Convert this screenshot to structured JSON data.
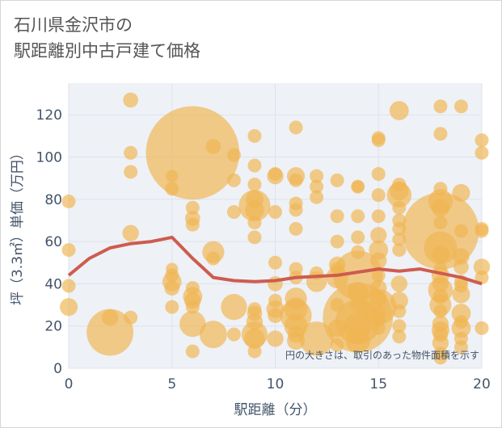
{
  "title": {
    "line1": "石川県金沢市の",
    "line2": "駅距離別中古戸建て価格"
  },
  "note": "円の大きさは、取引のあった物件面積を示す",
  "colors": {
    "bubble": "#f0b552",
    "line": "#cd5c4f",
    "grid": "#dde3ec",
    "plot_bg": "#eef1f6",
    "axis_text": "#44546a"
  },
  "chart_data": {
    "type": "scatter",
    "xlabel": "駅距離（分）",
    "ylabel": "坪（3.3㎡）単価（万円）",
    "xlim": [
      0,
      20
    ],
    "ylim": [
      0,
      135
    ],
    "x_ticks": [
      0,
      5,
      10,
      15,
      20
    ],
    "y_ticks": [
      0,
      20,
      40,
      60,
      80,
      100,
      120
    ],
    "grid": true,
    "points": [
      {
        "x": 0,
        "y": 79,
        "s": 1
      },
      {
        "x": 0,
        "y": 56,
        "s": 1
      },
      {
        "x": 0,
        "y": 39,
        "s": 1
      },
      {
        "x": 0,
        "y": 29,
        "s": 1.3
      },
      {
        "x": 2,
        "y": 24,
        "s": 1.2
      },
      {
        "x": 2,
        "y": 17,
        "s": 3.4
      },
      {
        "x": 3,
        "y": 127,
        "s": 1.1
      },
      {
        "x": 3,
        "y": 102,
        "s": 1
      },
      {
        "x": 3,
        "y": 93,
        "s": 1
      },
      {
        "x": 3,
        "y": 64,
        "s": 1.2
      },
      {
        "x": 3,
        "y": 24,
        "s": 1
      },
      {
        "x": 5,
        "y": 91,
        "s": 0.9
      },
      {
        "x": 5,
        "y": 85,
        "s": 1
      },
      {
        "x": 5,
        "y": 47,
        "s": 0.9
      },
      {
        "x": 5,
        "y": 44,
        "s": 1
      },
      {
        "x": 5,
        "y": 41,
        "s": 1.4
      },
      {
        "x": 5,
        "y": 38,
        "s": 1.1
      },
      {
        "x": 5,
        "y": 29,
        "s": 1
      },
      {
        "x": 6,
        "y": 102,
        "s": 6.8
      },
      {
        "x": 6,
        "y": 76,
        "s": 1
      },
      {
        "x": 6,
        "y": 71,
        "s": 1.1
      },
      {
        "x": 6,
        "y": 68,
        "s": 1
      },
      {
        "x": 6,
        "y": 38,
        "s": 1
      },
      {
        "x": 6,
        "y": 34,
        "s": 1.4
      },
      {
        "x": 6,
        "y": 32,
        "s": 1.2
      },
      {
        "x": 6,
        "y": 29,
        "s": 1
      },
      {
        "x": 6,
        "y": 21,
        "s": 1.9
      },
      {
        "x": 6,
        "y": 8,
        "s": 1
      },
      {
        "x": 7,
        "y": 105,
        "s": 1.1
      },
      {
        "x": 7,
        "y": 55,
        "s": 1.6
      },
      {
        "x": 7,
        "y": 52,
        "s": 1
      },
      {
        "x": 7,
        "y": 16,
        "s": 2
      },
      {
        "x": 8,
        "y": 101,
        "s": 1
      },
      {
        "x": 8,
        "y": 89,
        "s": 1
      },
      {
        "x": 8,
        "y": 74,
        "s": 1
      },
      {
        "x": 8,
        "y": 29,
        "s": 1.9
      },
      {
        "x": 8,
        "y": 16,
        "s": 1
      },
      {
        "x": 9,
        "y": 110,
        "s": 1
      },
      {
        "x": 9,
        "y": 96,
        "s": 1
      },
      {
        "x": 9,
        "y": 87,
        "s": 1
      },
      {
        "x": 9,
        "y": 80,
        "s": 1.3
      },
      {
        "x": 9,
        "y": 77,
        "s": 2.3
      },
      {
        "x": 9,
        "y": 75,
        "s": 1.4
      },
      {
        "x": 9,
        "y": 69,
        "s": 1
      },
      {
        "x": 9,
        "y": 62,
        "s": 1
      },
      {
        "x": 9,
        "y": 28,
        "s": 1
      },
      {
        "x": 9,
        "y": 26,
        "s": 1.1
      },
      {
        "x": 9,
        "y": 22,
        "s": 1.2
      },
      {
        "x": 9,
        "y": 16,
        "s": 1.9
      },
      {
        "x": 9,
        "y": 14,
        "s": 1.5
      },
      {
        "x": 9,
        "y": 8,
        "s": 1
      },
      {
        "x": 10,
        "y": 92,
        "s": 1
      },
      {
        "x": 10,
        "y": 91,
        "s": 1.2
      },
      {
        "x": 10,
        "y": 74,
        "s": 1
      },
      {
        "x": 10,
        "y": 50,
        "s": 1
      },
      {
        "x": 10,
        "y": 40,
        "s": 1.1
      },
      {
        "x": 10,
        "y": 32,
        "s": 1
      },
      {
        "x": 10,
        "y": 28,
        "s": 1.3
      },
      {
        "x": 10,
        "y": 25,
        "s": 1.1
      },
      {
        "x": 10,
        "y": 14,
        "s": 1.2
      },
      {
        "x": 11,
        "y": 114,
        "s": 1
      },
      {
        "x": 11,
        "y": 91,
        "s": 1.3
      },
      {
        "x": 11,
        "y": 89,
        "s": 1
      },
      {
        "x": 11,
        "y": 78,
        "s": 1
      },
      {
        "x": 11,
        "y": 75,
        "s": 1
      },
      {
        "x": 11,
        "y": 66,
        "s": 1
      },
      {
        "x": 11,
        "y": 47,
        "s": 1
      },
      {
        "x": 11,
        "y": 43,
        "s": 1
      },
      {
        "x": 11,
        "y": 33,
        "s": 1.6
      },
      {
        "x": 11,
        "y": 28,
        "s": 1.7
      },
      {
        "x": 11,
        "y": 25,
        "s": 2.3
      },
      {
        "x": 11,
        "y": 20,
        "s": 1.7
      },
      {
        "x": 11,
        "y": 16,
        "s": 1.2
      },
      {
        "x": 11,
        "y": 13,
        "s": 1.3
      },
      {
        "x": 12,
        "y": 91,
        "s": 1
      },
      {
        "x": 12,
        "y": 86,
        "s": 1
      },
      {
        "x": 12,
        "y": 81,
        "s": 1
      },
      {
        "x": 12,
        "y": 45,
        "s": 1
      },
      {
        "x": 12,
        "y": 41,
        "s": 1.5
      },
      {
        "x": 12,
        "y": 14,
        "s": 2.5
      },
      {
        "x": 13,
        "y": 89,
        "s": 1
      },
      {
        "x": 13,
        "y": 72,
        "s": 1
      },
      {
        "x": 13,
        "y": 60,
        "s": 1
      },
      {
        "x": 13,
        "y": 49,
        "s": 1.2
      },
      {
        "x": 13,
        "y": 47,
        "s": 1
      },
      {
        "x": 13,
        "y": 43,
        "s": 1.6
      },
      {
        "x": 13,
        "y": 30,
        "s": 1
      },
      {
        "x": 13,
        "y": 19,
        "s": 1.3
      },
      {
        "x": 13,
        "y": 11,
        "s": 1
      },
      {
        "x": 14,
        "y": 86,
        "s": 1
      },
      {
        "x": 14,
        "y": 86,
        "s": 0.9
      },
      {
        "x": 14,
        "y": 72,
        "s": 1
      },
      {
        "x": 14,
        "y": 62,
        "s": 1
      },
      {
        "x": 14,
        "y": 55,
        "s": 1
      },
      {
        "x": 14,
        "y": 44,
        "s": 3.6
      },
      {
        "x": 14,
        "y": 36,
        "s": 1.5
      },
      {
        "x": 14,
        "y": 30,
        "s": 1.1
      },
      {
        "x": 14,
        "y": 24,
        "s": 5.1
      },
      {
        "x": 14,
        "y": 22,
        "s": 3.3
      },
      {
        "x": 14,
        "y": 20,
        "s": 2
      },
      {
        "x": 14,
        "y": 16,
        "s": 1.2
      },
      {
        "x": 14,
        "y": 13,
        "s": 1.8
      },
      {
        "x": 15,
        "y": 109,
        "s": 1
      },
      {
        "x": 15,
        "y": 108,
        "s": 1
      },
      {
        "x": 15,
        "y": 92,
        "s": 1
      },
      {
        "x": 15,
        "y": 82,
        "s": 1
      },
      {
        "x": 15,
        "y": 72,
        "s": 1
      },
      {
        "x": 15,
        "y": 63,
        "s": 1.2
      },
      {
        "x": 15,
        "y": 56,
        "s": 1.4
      },
      {
        "x": 15,
        "y": 51,
        "s": 1.2
      },
      {
        "x": 15,
        "y": 44,
        "s": 1
      },
      {
        "x": 15,
        "y": 38,
        "s": 1.2
      },
      {
        "x": 15,
        "y": 33,
        "s": 1.2
      },
      {
        "x": 15,
        "y": 29,
        "s": 2.6
      },
      {
        "x": 15,
        "y": 26,
        "s": 1.1
      },
      {
        "x": 15,
        "y": 23,
        "s": 1
      },
      {
        "x": 15,
        "y": 19,
        "s": 1
      },
      {
        "x": 16,
        "y": 122,
        "s": 1.4
      },
      {
        "x": 16,
        "y": 87,
        "s": 1
      },
      {
        "x": 16,
        "y": 84,
        "s": 1.4
      },
      {
        "x": 16,
        "y": 82,
        "s": 1.8
      },
      {
        "x": 16,
        "y": 76,
        "s": 1
      },
      {
        "x": 16,
        "y": 70,
        "s": 1
      },
      {
        "x": 16,
        "y": 66,
        "s": 1
      },
      {
        "x": 16,
        "y": 61,
        "s": 1
      },
      {
        "x": 16,
        "y": 56,
        "s": 1
      },
      {
        "x": 16,
        "y": 40,
        "s": 1.2
      },
      {
        "x": 16,
        "y": 32,
        "s": 1.3
      },
      {
        "x": 16,
        "y": 27,
        "s": 1
      },
      {
        "x": 16,
        "y": 20,
        "s": 1
      },
      {
        "x": 16,
        "y": 15,
        "s": 1
      },
      {
        "x": 18,
        "y": 124,
        "s": 1
      },
      {
        "x": 18,
        "y": 111,
        "s": 1
      },
      {
        "x": 18,
        "y": 85,
        "s": 1
      },
      {
        "x": 18,
        "y": 79,
        "s": 1.8
      },
      {
        "x": 18,
        "y": 76,
        "s": 1.3
      },
      {
        "x": 18,
        "y": 69,
        "s": 1
      },
      {
        "x": 18,
        "y": 65,
        "s": 5.6
      },
      {
        "x": 18,
        "y": 57,
        "s": 2.4
      },
      {
        "x": 18,
        "y": 54,
        "s": 1.3
      },
      {
        "x": 18,
        "y": 47,
        "s": 1
      },
      {
        "x": 18,
        "y": 44,
        "s": 1.3
      },
      {
        "x": 18,
        "y": 40,
        "s": 1.2
      },
      {
        "x": 18,
        "y": 37,
        "s": 1.8
      },
      {
        "x": 18,
        "y": 34,
        "s": 1.1
      },
      {
        "x": 18,
        "y": 30,
        "s": 1.6
      },
      {
        "x": 18,
        "y": 27,
        "s": 1
      },
      {
        "x": 18,
        "y": 21,
        "s": 1.2
      },
      {
        "x": 18,
        "y": 18,
        "s": 1.3
      },
      {
        "x": 18,
        "y": 16,
        "s": 1.1
      },
      {
        "x": 18,
        "y": 12,
        "s": 1.2
      },
      {
        "x": 18,
        "y": 7,
        "s": 1
      },
      {
        "x": 18,
        "y": 5,
        "s": 1
      },
      {
        "x": 19,
        "y": 124,
        "s": 1
      },
      {
        "x": 19,
        "y": 83,
        "s": 1.3
      },
      {
        "x": 19,
        "y": 65,
        "s": 1
      },
      {
        "x": 19,
        "y": 53,
        "s": 1.2
      },
      {
        "x": 19,
        "y": 48,
        "s": 1.1
      },
      {
        "x": 19,
        "y": 41,
        "s": 1
      },
      {
        "x": 19,
        "y": 39,
        "s": 1
      },
      {
        "x": 19,
        "y": 35,
        "s": 1.3
      },
      {
        "x": 19,
        "y": 26,
        "s": 1.4
      },
      {
        "x": 19,
        "y": 22,
        "s": 1
      },
      {
        "x": 19,
        "y": 19,
        "s": 1.4
      },
      {
        "x": 19,
        "y": 14,
        "s": 1
      },
      {
        "x": 19,
        "y": 10,
        "s": 1
      },
      {
        "x": 20,
        "y": 108,
        "s": 1
      },
      {
        "x": 20,
        "y": 102,
        "s": 1
      },
      {
        "x": 20,
        "y": 66,
        "s": 1
      },
      {
        "x": 20,
        "y": 65,
        "s": 1
      },
      {
        "x": 20,
        "y": 48,
        "s": 1.2
      },
      {
        "x": 20,
        "y": 43,
        "s": 1
      },
      {
        "x": 20,
        "y": 19,
        "s": 1
      }
    ],
    "trend": {
      "x": [
        0,
        1,
        2,
        3,
        4,
        5,
        6,
        7,
        8,
        9,
        10,
        11,
        12,
        13,
        14,
        15,
        16,
        17,
        18,
        19,
        20
      ],
      "y": [
        44,
        52,
        57,
        59,
        60,
        62,
        52,
        43,
        41.5,
        41,
        41.5,
        43,
        43.5,
        44,
        45.5,
        47,
        46,
        47,
        45,
        43,
        40
      ]
    }
  }
}
